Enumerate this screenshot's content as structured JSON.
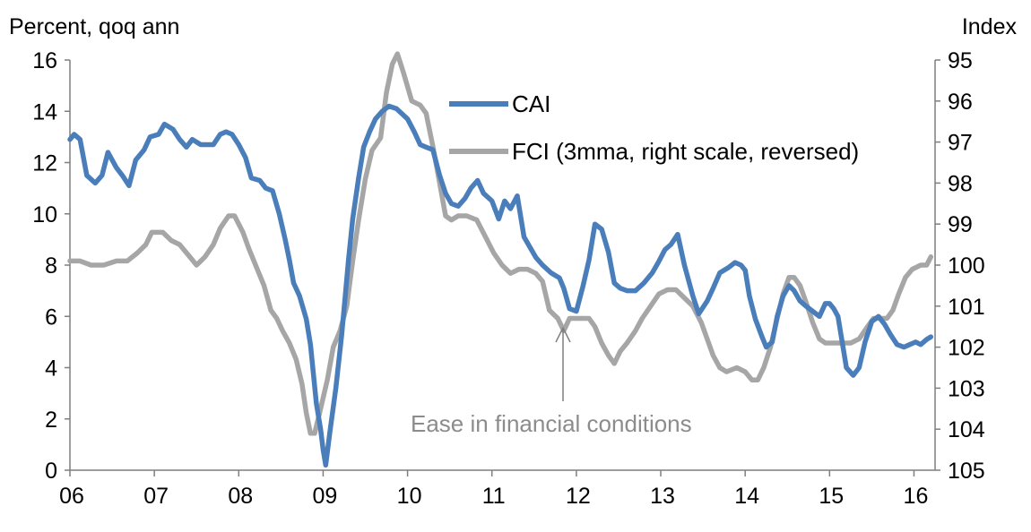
{
  "chart_data": {
    "type": "line",
    "left_axis": {
      "label": "Percent, qoq ann",
      "ticks": [
        0,
        2,
        4,
        6,
        8,
        10,
        12,
        14,
        16
      ],
      "ylim": [
        0,
        16
      ]
    },
    "right_axis": {
      "label": "Index",
      "ticks": [
        95,
        96,
        97,
        98,
        99,
        100,
        101,
        102,
        103,
        104,
        105
      ],
      "ylim": [
        95,
        105
      ],
      "reversed": true
    },
    "x_axis": {
      "ticks": [
        "06",
        "07",
        "08",
        "09",
        "10",
        "11",
        "12",
        "13",
        "14",
        "15",
        "16"
      ],
      "xlim": [
        2006.0,
        2016.25
      ]
    },
    "grid": false,
    "legend_position": "top-center",
    "annotation": "Ease in financial conditions",
    "colors": {
      "CAI": "#4a7ebb",
      "FCI": "#a6a6a6",
      "annotation_text": "#8c8c8c",
      "arrow": "#7f7f7f"
    },
    "series": [
      {
        "name": "CAI",
        "axis": "left",
        "points": [
          [
            2006.0,
            12.9
          ],
          [
            2006.05,
            13.1
          ],
          [
            2006.12,
            12.9
          ],
          [
            2006.2,
            11.5
          ],
          [
            2006.3,
            11.2
          ],
          [
            2006.38,
            11.5
          ],
          [
            2006.45,
            12.4
          ],
          [
            2006.55,
            11.8
          ],
          [
            2006.62,
            11.5
          ],
          [
            2006.7,
            11.1
          ],
          [
            2006.78,
            12.1
          ],
          [
            2006.88,
            12.5
          ],
          [
            2006.95,
            13.0
          ],
          [
            2007.05,
            13.1
          ],
          [
            2007.12,
            13.5
          ],
          [
            2007.22,
            13.3
          ],
          [
            2007.3,
            12.9
          ],
          [
            2007.38,
            12.6
          ],
          [
            2007.45,
            12.9
          ],
          [
            2007.55,
            12.7
          ],
          [
            2007.62,
            12.7
          ],
          [
            2007.7,
            12.7
          ],
          [
            2007.78,
            13.1
          ],
          [
            2007.85,
            13.2
          ],
          [
            2007.92,
            13.1
          ],
          [
            2008.0,
            12.7
          ],
          [
            2008.08,
            12.2
          ],
          [
            2008.15,
            11.4
          ],
          [
            2008.25,
            11.3
          ],
          [
            2008.32,
            11.0
          ],
          [
            2008.4,
            10.9
          ],
          [
            2008.48,
            10.0
          ],
          [
            2008.55,
            9.0
          ],
          [
            2008.6,
            8.2
          ],
          [
            2008.65,
            7.3
          ],
          [
            2008.72,
            6.8
          ],
          [
            2008.8,
            5.9
          ],
          [
            2008.85,
            4.9
          ],
          [
            2008.92,
            2.6
          ],
          [
            2008.97,
            1.6
          ],
          [
            2009.0,
            0.8
          ],
          [
            2009.03,
            0.2
          ],
          [
            2009.08,
            1.5
          ],
          [
            2009.15,
            3.2
          ],
          [
            2009.22,
            5.3
          ],
          [
            2009.3,
            8.2
          ],
          [
            2009.35,
            9.8
          ],
          [
            2009.42,
            11.4
          ],
          [
            2009.48,
            12.6
          ],
          [
            2009.55,
            13.2
          ],
          [
            2009.62,
            13.7
          ],
          [
            2009.7,
            14.0
          ],
          [
            2009.78,
            14.2
          ],
          [
            2009.87,
            14.1
          ],
          [
            2010.0,
            13.7
          ],
          [
            2010.08,
            13.2
          ],
          [
            2010.15,
            12.7
          ],
          [
            2010.22,
            12.6
          ],
          [
            2010.3,
            12.5
          ],
          [
            2010.38,
            11.5
          ],
          [
            2010.45,
            10.8
          ],
          [
            2010.52,
            10.4
          ],
          [
            2010.6,
            10.3
          ],
          [
            2010.68,
            10.6
          ],
          [
            2010.75,
            11.0
          ],
          [
            2010.83,
            11.3
          ],
          [
            2010.9,
            10.8
          ],
          [
            2011.0,
            10.5
          ],
          [
            2011.08,
            9.8
          ],
          [
            2011.15,
            10.5
          ],
          [
            2011.22,
            10.2
          ],
          [
            2011.3,
            10.7
          ],
          [
            2011.38,
            9.1
          ],
          [
            2011.45,
            8.7
          ],
          [
            2011.52,
            8.3
          ],
          [
            2011.6,
            8.0
          ],
          [
            2011.7,
            7.7
          ],
          [
            2011.8,
            7.5
          ],
          [
            2011.85,
            7.1
          ],
          [
            2011.92,
            6.3
          ],
          [
            2012.0,
            6.2
          ],
          [
            2012.08,
            7.2
          ],
          [
            2012.15,
            8.2
          ],
          [
            2012.22,
            9.6
          ],
          [
            2012.3,
            9.4
          ],
          [
            2012.38,
            8.5
          ],
          [
            2012.45,
            7.3
          ],
          [
            2012.52,
            7.1
          ],
          [
            2012.6,
            7.0
          ],
          [
            2012.7,
            7.0
          ],
          [
            2012.8,
            7.3
          ],
          [
            2012.9,
            7.7
          ],
          [
            2012.97,
            8.1
          ],
          [
            2013.05,
            8.6
          ],
          [
            2013.12,
            8.8
          ],
          [
            2013.2,
            9.2
          ],
          [
            2013.28,
            8.0
          ],
          [
            2013.38,
            6.8
          ],
          [
            2013.45,
            6.1
          ],
          [
            2013.55,
            6.6
          ],
          [
            2013.62,
            7.1
          ],
          [
            2013.7,
            7.7
          ],
          [
            2013.8,
            7.9
          ],
          [
            2013.88,
            8.1
          ],
          [
            2013.95,
            8.0
          ],
          [
            2014.0,
            7.8
          ],
          [
            2014.05,
            6.8
          ],
          [
            2014.12,
            5.9
          ],
          [
            2014.2,
            5.2
          ],
          [
            2014.25,
            4.8
          ],
          [
            2014.32,
            5.0
          ],
          [
            2014.38,
            6.0
          ],
          [
            2014.45,
            6.8
          ],
          [
            2014.52,
            7.2
          ],
          [
            2014.58,
            7.0
          ],
          [
            2014.65,
            6.6
          ],
          [
            2014.72,
            6.4
          ],
          [
            2014.8,
            6.2
          ],
          [
            2014.88,
            6.0
          ],
          [
            2014.95,
            6.5
          ],
          [
            2015.0,
            6.5
          ],
          [
            2015.05,
            6.3
          ],
          [
            2015.1,
            6.0
          ],
          [
            2015.15,
            5.0
          ],
          [
            2015.2,
            4.0
          ],
          [
            2015.28,
            3.7
          ],
          [
            2015.35,
            4.0
          ],
          [
            2015.42,
            5.0
          ],
          [
            2015.5,
            5.8
          ],
          [
            2015.58,
            6.0
          ],
          [
            2015.65,
            5.7
          ],
          [
            2015.72,
            5.3
          ],
          [
            2015.8,
            4.9
          ],
          [
            2015.88,
            4.8
          ],
          [
            2015.95,
            4.9
          ],
          [
            2016.02,
            5.0
          ],
          [
            2016.08,
            4.9
          ],
          [
            2016.15,
            5.1
          ],
          [
            2016.2,
            5.2
          ]
        ]
      },
      {
        "name": "FCI (3mma, right scale, reversed)",
        "axis": "right",
        "points": [
          [
            2006.0,
            99.9
          ],
          [
            2006.12,
            99.9
          ],
          [
            2006.25,
            100.0
          ],
          [
            2006.4,
            100.0
          ],
          [
            2006.55,
            99.9
          ],
          [
            2006.68,
            99.9
          ],
          [
            2006.8,
            99.7
          ],
          [
            2006.9,
            99.5
          ],
          [
            2006.97,
            99.2
          ],
          [
            2007.1,
            99.2
          ],
          [
            2007.2,
            99.4
          ],
          [
            2007.3,
            99.5
          ],
          [
            2007.42,
            99.8
          ],
          [
            2007.5,
            100.0
          ],
          [
            2007.6,
            99.8
          ],
          [
            2007.7,
            99.5
          ],
          [
            2007.78,
            99.1
          ],
          [
            2007.88,
            98.8
          ],
          [
            2007.95,
            98.8
          ],
          [
            2008.05,
            99.2
          ],
          [
            2008.12,
            99.6
          ],
          [
            2008.2,
            100.0
          ],
          [
            2008.3,
            100.5
          ],
          [
            2008.38,
            101.1
          ],
          [
            2008.45,
            101.3
          ],
          [
            2008.52,
            101.6
          ],
          [
            2008.6,
            101.9
          ],
          [
            2008.68,
            102.3
          ],
          [
            2008.75,
            102.9
          ],
          [
            2008.8,
            103.6
          ],
          [
            2008.85,
            104.1
          ],
          [
            2008.9,
            104.1
          ],
          [
            2008.97,
            103.5
          ],
          [
            2009.05,
            102.8
          ],
          [
            2009.12,
            102.0
          ],
          [
            2009.2,
            101.6
          ],
          [
            2009.28,
            101.0
          ],
          [
            2009.35,
            99.9
          ],
          [
            2009.42,
            98.9
          ],
          [
            2009.5,
            97.9
          ],
          [
            2009.58,
            97.2
          ],
          [
            2009.68,
            96.9
          ],
          [
            2009.75,
            95.8
          ],
          [
            2009.82,
            95.1
          ],
          [
            2009.88,
            94.85
          ],
          [
            2009.95,
            95.3
          ],
          [
            2010.05,
            96.0
          ],
          [
            2010.15,
            96.1
          ],
          [
            2010.22,
            96.3
          ],
          [
            2010.3,
            97.1
          ],
          [
            2010.38,
            98.0
          ],
          [
            2010.45,
            98.8
          ],
          [
            2010.52,
            98.9
          ],
          [
            2010.6,
            98.8
          ],
          [
            2010.7,
            98.8
          ],
          [
            2010.82,
            98.9
          ],
          [
            2010.92,
            99.3
          ],
          [
            2011.02,
            99.7
          ],
          [
            2011.12,
            100.0
          ],
          [
            2011.22,
            100.2
          ],
          [
            2011.32,
            100.1
          ],
          [
            2011.42,
            100.1
          ],
          [
            2011.52,
            100.2
          ],
          [
            2011.6,
            100.4
          ],
          [
            2011.68,
            101.1
          ],
          [
            2011.78,
            101.3
          ],
          [
            2011.85,
            101.6
          ],
          [
            2011.92,
            101.3
          ],
          [
            2012.0,
            101.3
          ],
          [
            2012.08,
            101.3
          ],
          [
            2012.15,
            101.3
          ],
          [
            2012.22,
            101.5
          ],
          [
            2012.3,
            101.9
          ],
          [
            2012.38,
            102.2
          ],
          [
            2012.45,
            102.4
          ],
          [
            2012.52,
            102.1
          ],
          [
            2012.6,
            101.9
          ],
          [
            2012.7,
            101.6
          ],
          [
            2012.78,
            101.3
          ],
          [
            2012.88,
            101.0
          ],
          [
            2012.98,
            100.7
          ],
          [
            2013.08,
            100.6
          ],
          [
            2013.18,
            100.6
          ],
          [
            2013.28,
            100.8
          ],
          [
            2013.38,
            101.0
          ],
          [
            2013.48,
            101.4
          ],
          [
            2013.55,
            101.8
          ],
          [
            2013.62,
            102.2
          ],
          [
            2013.7,
            102.5
          ],
          [
            2013.78,
            102.6
          ],
          [
            2013.9,
            102.5
          ],
          [
            2014.0,
            102.6
          ],
          [
            2014.08,
            102.8
          ],
          [
            2014.15,
            102.8
          ],
          [
            2014.22,
            102.5
          ],
          [
            2014.3,
            102.0
          ],
          [
            2014.38,
            101.3
          ],
          [
            2014.45,
            100.7
          ],
          [
            2014.52,
            100.3
          ],
          [
            2014.58,
            100.3
          ],
          [
            2014.65,
            100.5
          ],
          [
            2014.72,
            100.9
          ],
          [
            2014.8,
            101.4
          ],
          [
            2014.88,
            101.8
          ],
          [
            2014.95,
            101.9
          ],
          [
            2015.05,
            101.9
          ],
          [
            2015.15,
            101.9
          ],
          [
            2015.25,
            101.9
          ],
          [
            2015.35,
            101.8
          ],
          [
            2015.45,
            101.5
          ],
          [
            2015.52,
            101.3
          ],
          [
            2015.6,
            101.3
          ],
          [
            2015.68,
            101.3
          ],
          [
            2015.75,
            101.1
          ],
          [
            2015.82,
            100.7
          ],
          [
            2015.9,
            100.3
          ],
          [
            2015.98,
            100.1
          ],
          [
            2016.08,
            100.0
          ],
          [
            2016.15,
            100.0
          ],
          [
            2016.2,
            99.8
          ]
        ]
      }
    ]
  }
}
